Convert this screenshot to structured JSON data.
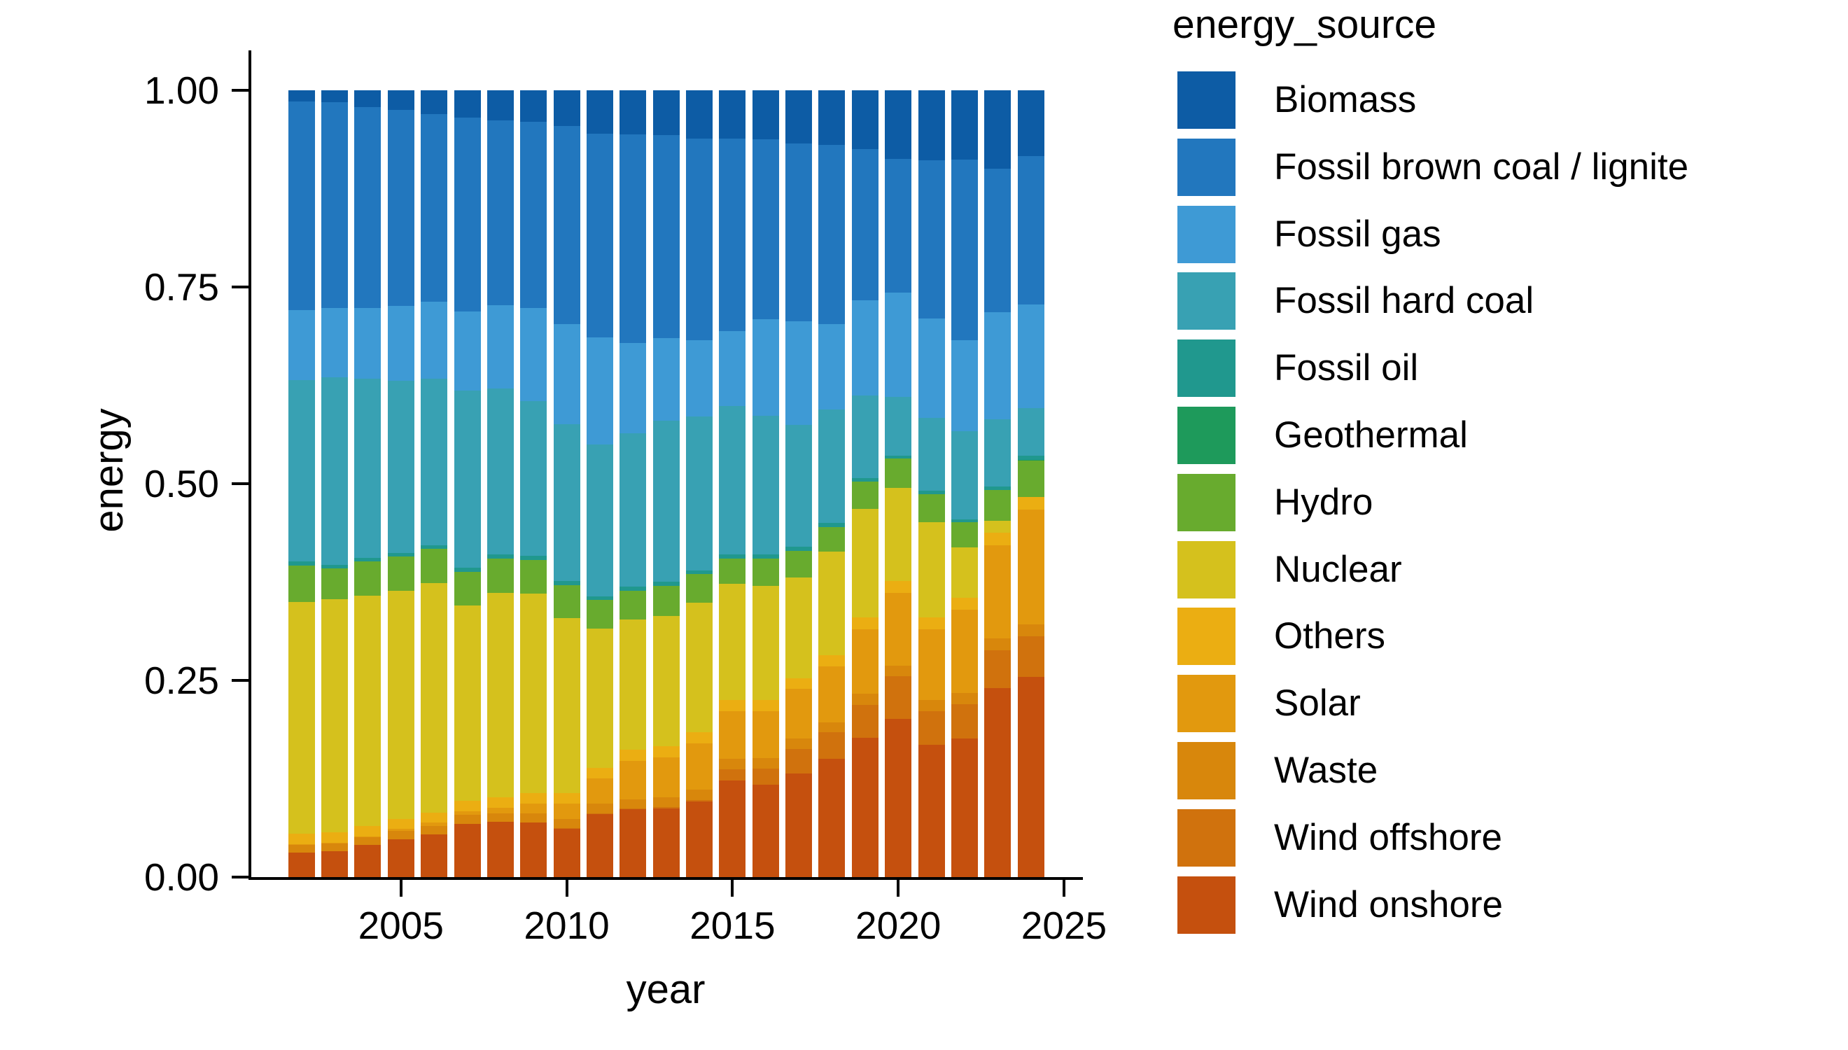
{
  "figure": {
    "y_axis": {
      "label": "energy",
      "tick_labels": [
        "0.00",
        "0.25",
        "0.50",
        "0.75",
        "1.00"
      ],
      "tick_values": [
        0,
        0.25,
        0.5,
        0.75,
        1
      ]
    },
    "x_axis": {
      "label": "year",
      "tick_labels": [
        "2005",
        "2010",
        "2015",
        "2020",
        "2025"
      ],
      "tick_values": [
        2005,
        2010,
        2015,
        2020,
        2025
      ]
    },
    "legend": {
      "title": "energy_source"
    }
  },
  "chart_data": {
    "type": "bar",
    "stacked": true,
    "normalized": true,
    "title": "",
    "xlabel": "year",
    "ylabel": "energy",
    "ylim": [
      0,
      1
    ],
    "grid": false,
    "legend_position": "right",
    "stack_note": "series listed top-to-bottom as stacked in each bar; legend order matches",
    "x": [
      2002,
      2003,
      2004,
      2005,
      2006,
      2007,
      2008,
      2009,
      2010,
      2011,
      2012,
      2013,
      2014,
      2015,
      2016,
      2017,
      2018,
      2019,
      2020,
      2021,
      2022,
      2023,
      2024
    ],
    "series": [
      {
        "name": "Biomass",
        "color": "#0D5CA5",
        "values": [
          0.014,
          0.015,
          0.021,
          0.025,
          0.03,
          0.035,
          0.038,
          0.04,
          0.045,
          0.055,
          0.056,
          0.057,
          0.061,
          0.061,
          0.062,
          0.068,
          0.069,
          0.075,
          0.087,
          0.089,
          0.088,
          0.1,
          0.084
        ]
      },
      {
        "name": "Fossil brown coal / lignite",
        "color": "#2277BE",
        "values": [
          0.265,
          0.262,
          0.256,
          0.249,
          0.239,
          0.246,
          0.235,
          0.237,
          0.252,
          0.259,
          0.265,
          0.258,
          0.257,
          0.245,
          0.229,
          0.226,
          0.228,
          0.192,
          0.17,
          0.201,
          0.23,
          0.182,
          0.188
        ]
      },
      {
        "name": "Fossil gas",
        "color": "#3E9AD5",
        "values": [
          0.089,
          0.088,
          0.09,
          0.095,
          0.098,
          0.101,
          0.106,
          0.118,
          0.127,
          0.136,
          0.115,
          0.105,
          0.097,
          0.095,
          0.123,
          0.131,
          0.109,
          0.121,
          0.133,
          0.126,
          0.115,
          0.136,
          0.132
        ]
      },
      {
        "name": "Fossil hard coal",
        "color": "#38A1B3",
        "values": [
          0.231,
          0.238,
          0.227,
          0.219,
          0.211,
          0.225,
          0.211,
          0.197,
          0.2,
          0.193,
          0.195,
          0.205,
          0.195,
          0.189,
          0.176,
          0.155,
          0.144,
          0.105,
          0.074,
          0.093,
          0.112,
          0.086,
          0.06
        ]
      },
      {
        "name": "Fossil oil",
        "color": "#20988E",
        "values": [
          0.005,
          0.005,
          0.005,
          0.005,
          0.005,
          0.005,
          0.005,
          0.005,
          0.005,
          0.005,
          0.005,
          0.005,
          0.005,
          0.005,
          0.005,
          0.005,
          0.005,
          0.004,
          0.004,
          0.004,
          0.004,
          0.004,
          0.006
        ]
      },
      {
        "name": "Geothermal",
        "color": "#1E9A5B",
        "values": [
          0,
          0,
          0,
          0,
          0,
          0,
          0,
          0,
          0,
          0,
          0,
          0,
          0,
          0,
          0,
          0,
          0,
          0,
          0,
          0,
          0,
          0,
          0.001
        ]
      },
      {
        "name": "Hydro",
        "color": "#68AB2E",
        "values": [
          0.046,
          0.039,
          0.043,
          0.043,
          0.043,
          0.043,
          0.044,
          0.043,
          0.042,
          0.036,
          0.037,
          0.038,
          0.036,
          0.032,
          0.035,
          0.034,
          0.031,
          0.035,
          0.037,
          0.036,
          0.032,
          0.039,
          0.046
        ]
      },
      {
        "name": "Nuclear",
        "color": "#D5C11D",
        "values": [
          0.295,
          0.296,
          0.293,
          0.29,
          0.292,
          0.248,
          0.26,
          0.253,
          0.222,
          0.177,
          0.165,
          0.166,
          0.165,
          0.148,
          0.145,
          0.128,
          0.132,
          0.138,
          0.119,
          0.121,
          0.064,
          0.015,
          0
        ]
      },
      {
        "name": "Others",
        "color": "#EBAE12",
        "values": [
          0.013,
          0.013,
          0.013,
          0.013,
          0.013,
          0.013,
          0.013,
          0.014,
          0.014,
          0.014,
          0.014,
          0.014,
          0.014,
          0.014,
          0.014,
          0.014,
          0.014,
          0.015,
          0.015,
          0.015,
          0.015,
          0.016,
          0.016
        ]
      },
      {
        "name": "Solar",
        "color": "#E2990E",
        "values": [
          0.001,
          0.001,
          0.001,
          0.002,
          0.004,
          0.005,
          0.007,
          0.012,
          0.019,
          0.032,
          0.049,
          0.051,
          0.059,
          0.061,
          0.06,
          0.063,
          0.071,
          0.082,
          0.092,
          0.09,
          0.106,
          0.119,
          0.146
        ]
      },
      {
        "name": "Waste",
        "color": "#D8870C",
        "values": [
          0.01,
          0.01,
          0.01,
          0.011,
          0.011,
          0.011,
          0.011,
          0.012,
          0.012,
          0.012,
          0.012,
          0.012,
          0.013,
          0.013,
          0.013,
          0.013,
          0.013,
          0.014,
          0.014,
          0.014,
          0.014,
          0.015,
          0.015
        ]
      },
      {
        "name": "Wind offshore",
        "color": "#D0720D",
        "values": [
          0,
          0,
          0,
          0,
          0,
          0,
          0,
          0,
          0.001,
          0.001,
          0.001,
          0.002,
          0.002,
          0.014,
          0.021,
          0.031,
          0.034,
          0.042,
          0.054,
          0.043,
          0.044,
          0.048,
          0.052
        ]
      },
      {
        "name": "Wind onshore",
        "color": "#C5500E",
        "values": [
          0.031,
          0.033,
          0.041,
          0.048,
          0.054,
          0.068,
          0.07,
          0.069,
          0.061,
          0.08,
          0.086,
          0.087,
          0.096,
          0.123,
          0.117,
          0.132,
          0.15,
          0.177,
          0.201,
          0.168,
          0.176,
          0.24,
          0.254
        ]
      }
    ]
  }
}
